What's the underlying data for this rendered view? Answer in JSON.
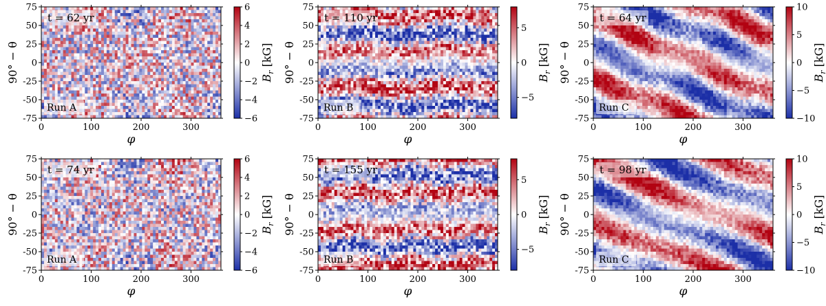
{
  "chart_data": [
    {
      "type": "heatmap",
      "run": "A",
      "time_label": "t = 62 yr",
      "run_label": "Run A",
      "xlabel": "φ",
      "ylabel": "90° − θ",
      "xlim": [
        0,
        360
      ],
      "ylim": [
        -75,
        75
      ],
      "xticks": [
        0,
        100,
        200,
        300
      ],
      "yticks": [
        75,
        50,
        25,
        0,
        -25,
        -50,
        -75
      ],
      "colorbar": {
        "label": "B_r [kG]",
        "range": [
          -6,
          6
        ],
        "ticks": [
          6,
          4,
          2,
          0,
          -2,
          -4,
          -6
        ]
      }
    },
    {
      "type": "heatmap",
      "run": "B",
      "time_label": "t = 110 yr",
      "run_label": "Run B",
      "xlabel": "φ",
      "ylabel": "90° − θ",
      "xlim": [
        0,
        360
      ],
      "ylim": [
        -75,
        75
      ],
      "xticks": [
        0,
        100,
        200,
        300
      ],
      "yticks": [
        75,
        50,
        25,
        0,
        -25,
        -50,
        -75
      ],
      "colorbar": {
        "label": "B_r [kG]",
        "range": [
          -8,
          8
        ],
        "ticks": [
          5,
          0,
          -5
        ]
      }
    },
    {
      "type": "heatmap",
      "run": "C",
      "time_label": "t = 64 yr",
      "run_label": "Run C",
      "xlabel": "φ",
      "ylabel": "90° − θ",
      "xlim": [
        0,
        360
      ],
      "ylim": [
        -75,
        75
      ],
      "xticks": [
        0,
        100,
        200,
        300
      ],
      "yticks": [
        75,
        50,
        25,
        0,
        -25,
        -50,
        -75
      ],
      "colorbar": {
        "label": "B_r [kG]",
        "range": [
          -10,
          10
        ],
        "ticks": [
          10,
          5,
          0,
          -5,
          -10
        ]
      }
    },
    {
      "type": "heatmap",
      "run": "A",
      "time_label": "t = 74 yr",
      "run_label": "Run A",
      "xlabel": "φ",
      "ylabel": "90° − θ",
      "xlim": [
        0,
        360
      ],
      "ylim": [
        -75,
        75
      ],
      "xticks": [
        0,
        100,
        200,
        300
      ],
      "yticks": [
        75,
        50,
        25,
        0,
        -25,
        -50,
        -75
      ],
      "colorbar": {
        "label": "B_r [kG]",
        "range": [
          -6,
          6
        ],
        "ticks": [
          6,
          4,
          2,
          0,
          -2,
          -4,
          -6
        ]
      }
    },
    {
      "type": "heatmap",
      "run": "B",
      "time_label": "t = 155 yr",
      "run_label": "Run B",
      "xlabel": "φ",
      "ylabel": "90° − θ",
      "xlim": [
        0,
        360
      ],
      "ylim": [
        -75,
        75
      ],
      "xticks": [
        0,
        100,
        200,
        300
      ],
      "yticks": [
        75,
        50,
        25,
        0,
        -25,
        -50,
        -75
      ],
      "colorbar": {
        "label": "B_r [kG]",
        "range": [
          -8,
          8
        ],
        "ticks": [
          5,
          0,
          -5
        ]
      }
    },
    {
      "type": "heatmap",
      "run": "C",
      "time_label": "t = 98 yr",
      "run_label": "Run C",
      "xlabel": "φ",
      "ylabel": "90° − θ",
      "xlim": [
        0,
        360
      ],
      "ylim": [
        -75,
        75
      ],
      "xticks": [
        0,
        100,
        200,
        300
      ],
      "yticks": [
        75,
        50,
        25,
        0,
        -25,
        -50,
        -75
      ],
      "colorbar": {
        "label": "B_r [kG]",
        "range": [
          -10,
          10
        ],
        "ticks": [
          10,
          5,
          0,
          -5,
          -10
        ]
      }
    }
  ],
  "colors": {
    "positive": "#b2182b",
    "negative": "#1d2fa8",
    "zero": "#ffffff"
  }
}
